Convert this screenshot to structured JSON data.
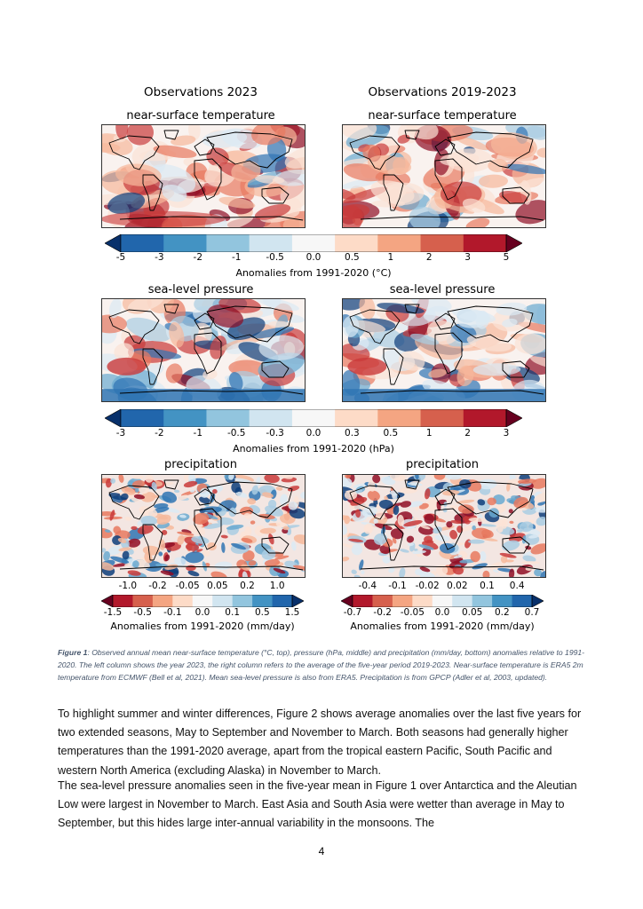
{
  "figure": {
    "column_titles": [
      "Observations 2023",
      "Observations 2019-2023"
    ],
    "rows": [
      {
        "variable": "near-surface temperature",
        "colorbar": {
          "ticks": [
            "-5",
            "-3",
            "-2",
            "-1",
            "-0.5",
            "0.0",
            "0.5",
            "1",
            "2",
            "3",
            "5"
          ],
          "label": "Anomalies from 1991-2020 (°C)",
          "colors": [
            "#08306b",
            "#2166ac",
            "#4393c3",
            "#92c5de",
            "#d1e5f0",
            "#f7f7f7",
            "#fddbc7",
            "#f4a582",
            "#d6604d",
            "#b2182b",
            "#67001f"
          ]
        }
      },
      {
        "variable": "sea-level pressure",
        "colorbar": {
          "ticks": [
            "-3",
            "-2",
            "-1",
            "-0.5",
            "-0.3",
            "0.0",
            "0.3",
            "0.5",
            "1",
            "2",
            "3"
          ],
          "label": "Anomalies from 1991-2020 (hPa)",
          "colors": [
            "#08306b",
            "#2166ac",
            "#4393c3",
            "#92c5de",
            "#d1e5f0",
            "#f7f7f7",
            "#fddbc7",
            "#f4a582",
            "#d6604d",
            "#b2182b",
            "#67001f"
          ]
        }
      },
      {
        "variable": "precipitation",
        "colorbars": [
          {
            "ticks_top": [
              "-1.0",
              "-0.2",
              "-0.05",
              "0.05",
              "0.2",
              "1.0"
            ],
            "ticks_bottom": [
              "-1.5",
              "-0.5",
              "-0.1",
              "0.0",
              "0.1",
              "0.5",
              "1.5"
            ],
            "label": "Anomalies from 1991-2020 (mm/day)"
          },
          {
            "ticks_top": [
              "-0.4",
              "-0.1",
              "-0.02",
              "0.02",
              "0.1",
              "0.4"
            ],
            "ticks_bottom": [
              "-0.7",
              "-0.2",
              "-0.05",
              "0.0",
              "0.05",
              "0.2",
              "0.7"
            ],
            "label": "Anomalies from 1991-2020 (mm/day)"
          }
        ],
        "colors": [
          "#67001f",
          "#b2182b",
          "#d6604d",
          "#f4a582",
          "#fddbc7",
          "#f7f7f7",
          "#d1e5f0",
          "#92c5de",
          "#4393c3",
          "#2166ac",
          "#08306b"
        ]
      }
    ]
  },
  "caption": {
    "lead": "Figure 1",
    "text": ": Observed annual mean near-surface temperature (°C, top), pressure (hPa, middle) and precipitation (mm/day, bottom) anomalies relative to 1991-2020. The left column shows the year 2023, the right column refers to the average of the five-year period 2019-2023. Near-surface temperature is ERA5 2m temperature from ECMWF (Bell et al, 2021). Mean sea-level pressure is also from ERA5. Precipitation is from GPCP (Adler et al, 2003, updated)."
  },
  "paragraphs": [
    "To highlight summer and winter differences, Figure 2 shows average anomalies over the last five years for two extended seasons, May to September and November to March. Both seasons had generally higher temperatures than the 1991-2020 average, apart from the tropical eastern Pacific, South Pacific and western North America (excluding Alaska) in November to March.",
    "The sea-level pressure anomalies seen in the five-year mean in Figure 1 over Antarctica and the Aleutian Low were largest in November to March. East Asia and South Asia were wetter than average in May to September, but this hides large inter-annual variability in the monsoons. The"
  ],
  "page_number": "4"
}
